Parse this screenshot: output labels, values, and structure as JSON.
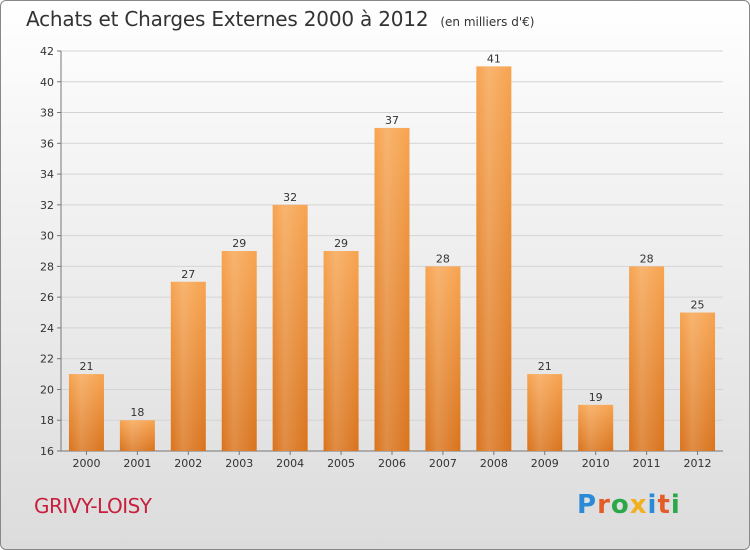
{
  "title": "Achats et Charges Externes 2000 à 2012",
  "unit_label": "(en milliers d'€)",
  "commune": "GRIVY-LOISY",
  "logo": {
    "letters": [
      {
        "ch": "P",
        "color": "#2a8ad8"
      },
      {
        "ch": "r",
        "color": "#e35d2a"
      },
      {
        "ch": "o",
        "color": "#2aa84a"
      },
      {
        "ch": "x",
        "color": "#f2b01e"
      },
      {
        "ch": "i",
        "color": "#2a8ad8"
      },
      {
        "ch": "t",
        "color": "#e35d2a"
      },
      {
        "ch": "i",
        "color": "#2aa84a"
      }
    ]
  },
  "chart_data": {
    "type": "bar",
    "categories": [
      "2000",
      "2001",
      "2002",
      "2003",
      "2004",
      "2005",
      "2006",
      "2007",
      "2008",
      "2009",
      "2010",
      "2011",
      "2012"
    ],
    "values": [
      21,
      18,
      27,
      29,
      32,
      29,
      37,
      28,
      41,
      21,
      19,
      28,
      25
    ],
    "ylim": [
      16,
      42
    ],
    "yticks": [
      16,
      18,
      20,
      22,
      24,
      26,
      28,
      30,
      32,
      34,
      36,
      38,
      40,
      42
    ],
    "grid": true,
    "bar_color_top": "#f7a450",
    "bar_color_bottom": "#d9731c"
  }
}
